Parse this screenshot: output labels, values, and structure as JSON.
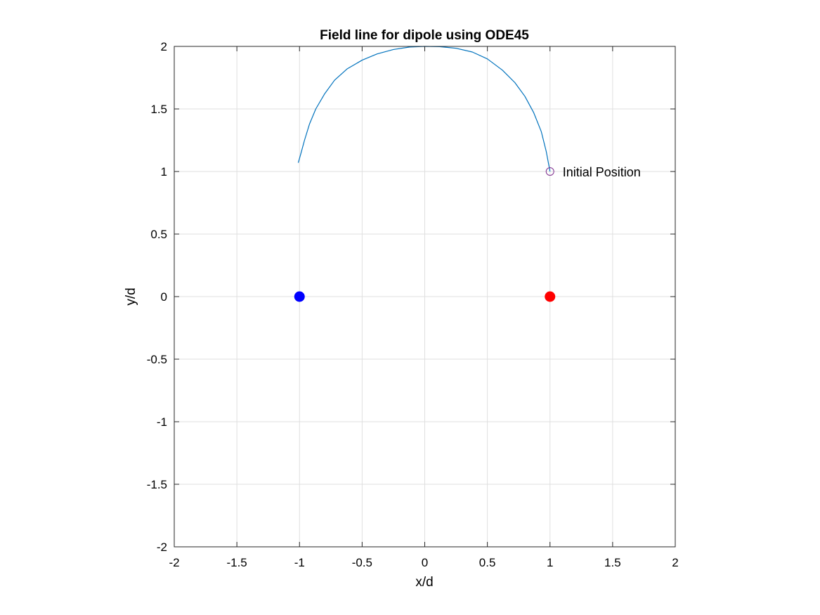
{
  "chart_data": {
    "type": "line",
    "title": "Field line for dipole using ODE45",
    "xlabel": "x/d",
    "ylabel": "y/d",
    "xlim": [
      -2,
      2
    ],
    "ylim": [
      -2,
      2
    ],
    "xticks": [
      -2,
      -1.5,
      -1,
      -0.5,
      0,
      0.5,
      1,
      1.5,
      2
    ],
    "yticks": [
      -2,
      -1.5,
      -1,
      -0.5,
      0,
      0.5,
      1,
      1.5,
      2
    ],
    "xtick_labels": [
      "-2",
      "-1.5",
      "-1",
      "-0.5",
      "0",
      "0.5",
      "1",
      "1.5",
      "2"
    ],
    "ytick_labels": [
      "-2",
      "-1.5",
      "-1",
      "-0.5",
      "0",
      "0.5",
      "1",
      "1.5",
      "2"
    ],
    "grid": true,
    "series": [
      {
        "color": "#0072bd",
        "x": [
          1.0,
          0.97,
          0.93,
          0.87,
          0.8,
          0.72,
          0.62,
          0.5,
          0.38,
          0.25,
          0.12,
          0.0,
          -0.12,
          -0.25,
          -0.38,
          -0.5,
          -0.62,
          -0.72,
          -0.8,
          -0.87,
          -0.92,
          -0.96,
          -0.99,
          -1.01
        ],
        "y": [
          1.0,
          1.16,
          1.32,
          1.47,
          1.6,
          1.71,
          1.81,
          1.9,
          1.955,
          1.985,
          1.998,
          2.0,
          1.995,
          1.975,
          1.94,
          1.89,
          1.82,
          1.73,
          1.62,
          1.5,
          1.38,
          1.25,
          1.14,
          1.07
        ]
      }
    ],
    "markers": [
      {
        "x": -1,
        "y": 0,
        "color": "#0000ff",
        "filled": true
      },
      {
        "x": 1,
        "y": 0,
        "color": "#ff0000",
        "filled": true
      },
      {
        "x": 1,
        "y": 1,
        "color": "#7e2f8e",
        "filled": false
      }
    ],
    "annotations": [
      {
        "text": "Initial Position",
        "x": 1,
        "y": 1
      }
    ]
  }
}
